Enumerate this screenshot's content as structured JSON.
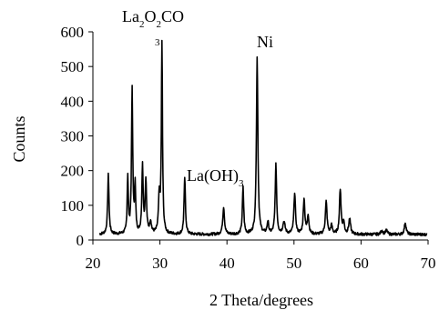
{
  "chart_data": {
    "type": "line",
    "title": "",
    "xlabel": "2 Theta/degrees",
    "ylabel": "Counts",
    "xlim": [
      20,
      70
    ],
    "ylim": [
      0,
      600
    ],
    "xticks": [
      20,
      30,
      40,
      50,
      60,
      70
    ],
    "yticks": [
      0,
      100,
      200,
      300,
      400,
      500,
      600
    ],
    "grid": false,
    "legend": "none",
    "line_color": "#000000",
    "peaks": [
      {
        "x": 22.3,
        "y": 188,
        "w": 0.12
      },
      {
        "x": 25.2,
        "y": 180,
        "w": 0.1
      },
      {
        "x": 25.85,
        "y": 430,
        "w": 0.11
      },
      {
        "x": 26.3,
        "y": 150,
        "w": 0.1
      },
      {
        "x": 27.4,
        "y": 210,
        "w": 0.12
      },
      {
        "x": 27.9,
        "y": 170,
        "w": 0.12
      },
      {
        "x": 28.6,
        "y": 50,
        "w": 0.15
      },
      {
        "x": 29.9,
        "y": 120,
        "w": 0.14
      },
      {
        "x": 30.3,
        "y": 560,
        "w": 0.1
      },
      {
        "x": 33.7,
        "y": 180,
        "w": 0.12
      },
      {
        "x": 39.5,
        "y": 95,
        "w": 0.15
      },
      {
        "x": 42.4,
        "y": 150,
        "w": 0.12
      },
      {
        "x": 44.5,
        "y": 525,
        "w": 0.13
      },
      {
        "x": 46.1,
        "y": 50,
        "w": 0.14
      },
      {
        "x": 47.3,
        "y": 215,
        "w": 0.13
      },
      {
        "x": 48.5,
        "y": 50,
        "w": 0.2
      },
      {
        "x": 50.1,
        "y": 135,
        "w": 0.14
      },
      {
        "x": 51.5,
        "y": 118,
        "w": 0.14
      },
      {
        "x": 52.1,
        "y": 70,
        "w": 0.14
      },
      {
        "x": 54.8,
        "y": 110,
        "w": 0.15
      },
      {
        "x": 55.6,
        "y": 40,
        "w": 0.15
      },
      {
        "x": 56.9,
        "y": 145,
        "w": 0.14
      },
      {
        "x": 57.4,
        "y": 50,
        "w": 0.14
      },
      {
        "x": 58.3,
        "y": 60,
        "w": 0.16
      },
      {
        "x": 63.1,
        "y": 28,
        "w": 0.16
      },
      {
        "x": 63.8,
        "y": 28,
        "w": 0.16
      },
      {
        "x": 66.6,
        "y": 50,
        "w": 0.16
      }
    ],
    "baseline": 16,
    "annotations": [
      {
        "main": "La",
        "sub1": "2",
        "mid": "O",
        "sub2": "2",
        "tail": "CO",
        "sub3": "3",
        "x": 30.3,
        "y": 600
      },
      {
        "main": "Ni",
        "x": 44.6,
        "y": 565
      },
      {
        "main": "La(OH)",
        "sub1": "3",
        "x": 33.8,
        "y": 200
      }
    ]
  }
}
